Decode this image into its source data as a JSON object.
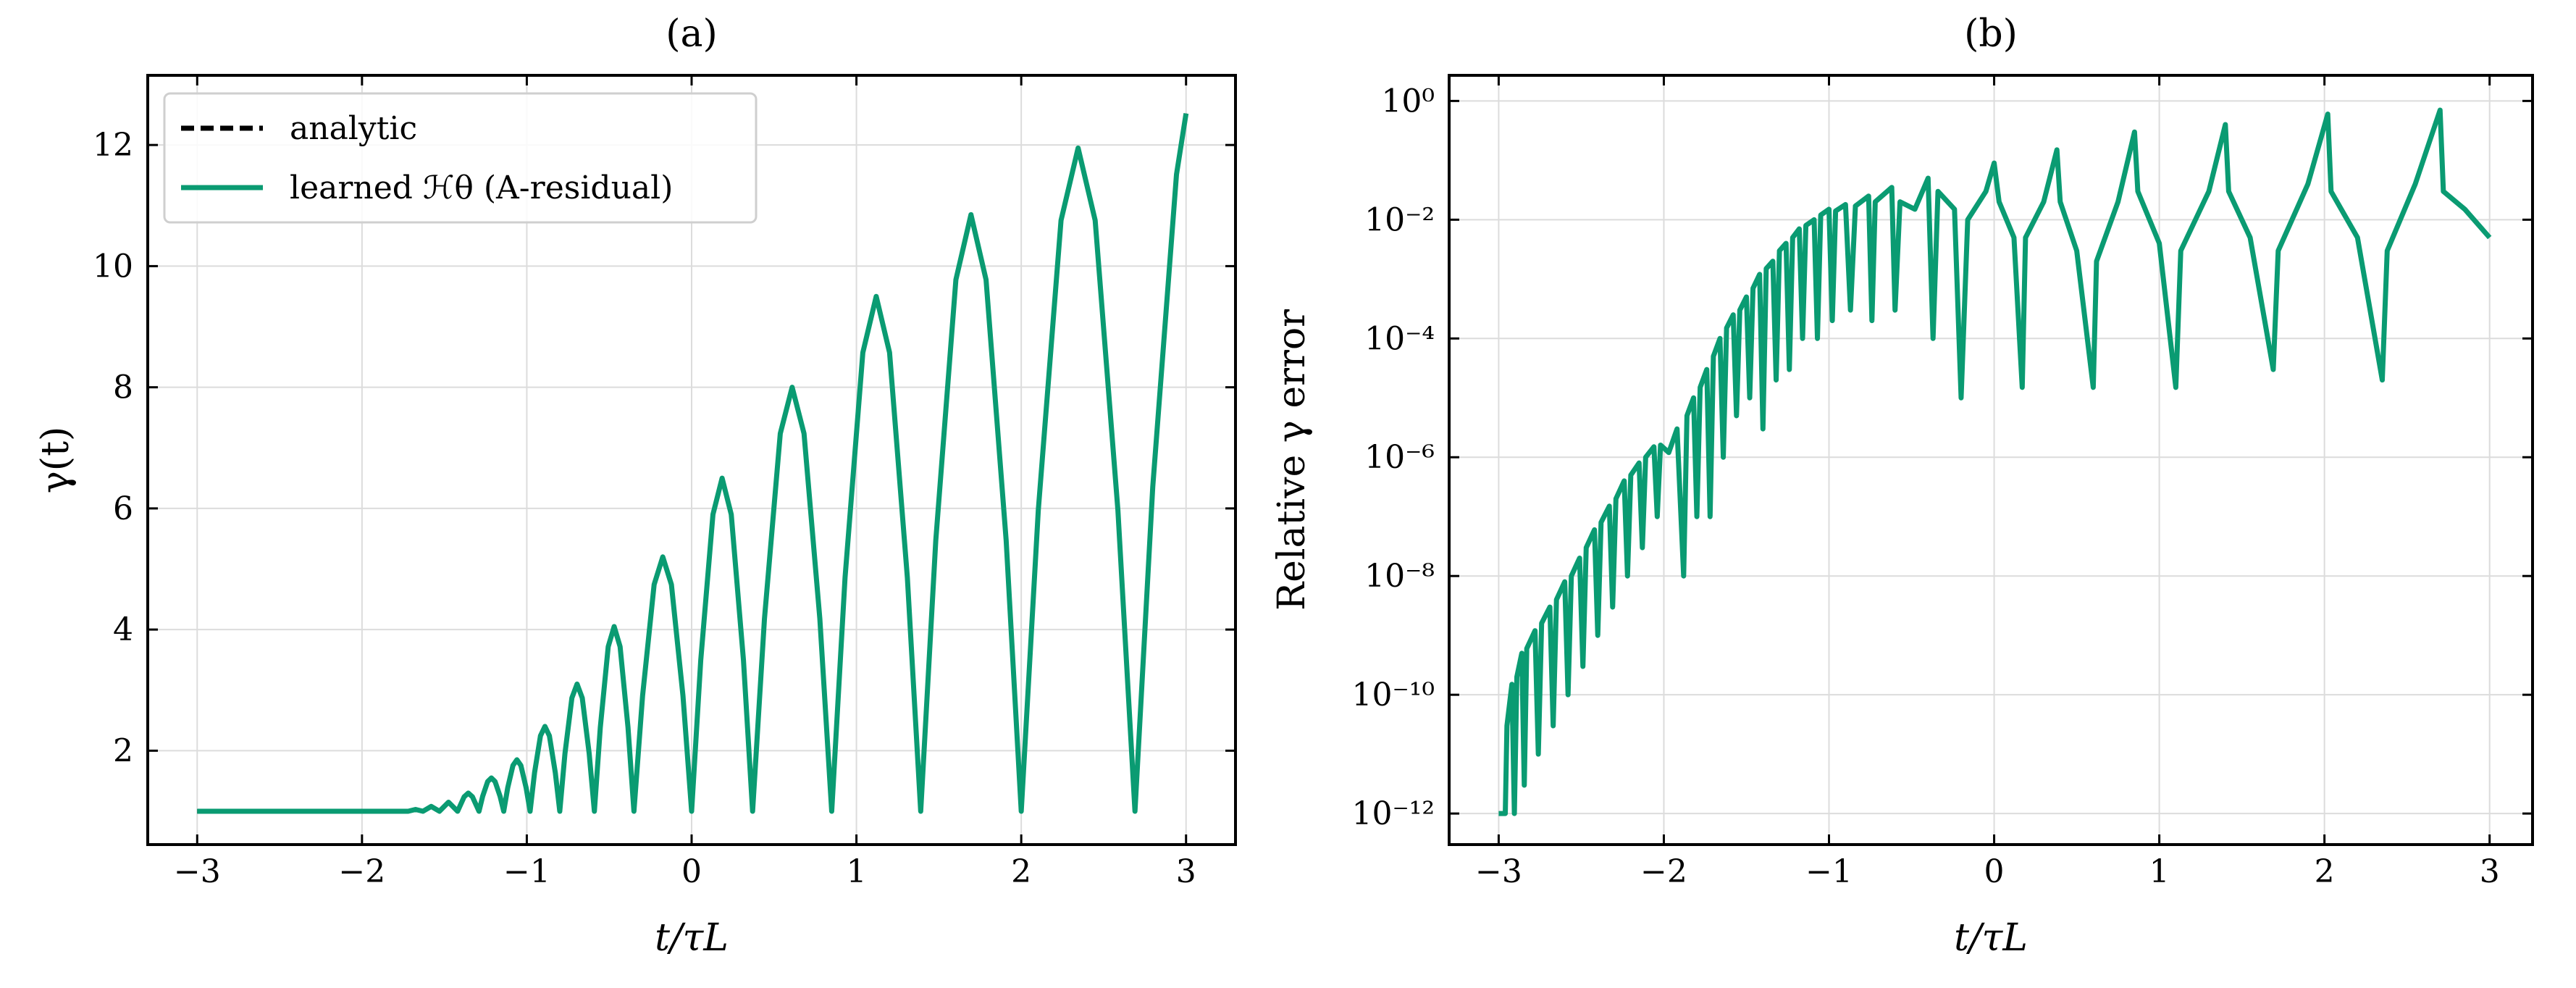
{
  "chart_data": [
    {
      "type": "line",
      "title": "(a)",
      "xlabel": "t/τL",
      "ylabel": "γ(t)",
      "xlim": [
        -3.3,
        3.3
      ],
      "ylim": [
        0.45,
        13.15
      ],
      "xticks": [
        {
          "value": -3,
          "label": "−3"
        },
        {
          "value": -2,
          "label": "−2"
        },
        {
          "value": -1,
          "label": "−1"
        },
        0,
        1,
        2,
        3
      ],
      "yticks": [
        2,
        4,
        6,
        8,
        10,
        12
      ],
      "grid": true,
      "legend": "upper left",
      "x": [
        -3,
        -2.5,
        -2,
        -1.8,
        -1.72,
        -1.675,
        -1.63,
        -1.58,
        -1.53,
        -1.475,
        -1.42,
        -1.38,
        -1.355,
        -1.33,
        -1.29,
        -1.2675,
        -1.2375,
        -1.215,
        -1.1925,
        -1.1625,
        -1.14,
        -1.116,
        -1.084,
        -1.06,
        -1.036,
        -1.004,
        -0.98,
        -0.953,
        -0.917,
        -0.89,
        -0.863,
        -0.827,
        -0.8,
        -0.7685,
        -0.7265,
        -0.695,
        -0.6635,
        -0.6215,
        -0.59,
        -0.554,
        -0.506,
        -0.47,
        -0.434,
        -0.386,
        -0.35,
        -0.2975,
        -0.2275,
        -0.175,
        -0.1225,
        -0.0525,
        0,
        0.0555,
        0.1295,
        0.185,
        0.2405,
        0.3145,
        0.37,
        0.442,
        0.538,
        0.61,
        0.682,
        0.778,
        0.85,
        0.931,
        1.039,
        1.12,
        1.201,
        1.309,
        1.39,
        1.4815,
        1.6035,
        1.695,
        1.7865,
        1.9085,
        2,
        2.1035,
        2.2415,
        2.345,
        2.4485,
        2.5865,
        2.69,
        2.798,
        2.942,
        3
      ],
      "series": [
        {
          "name": "analytic",
          "color": "#000000",
          "linestyle": "dashed",
          "values": [
            1,
            1,
            1,
            1,
            1,
            1.03,
            1,
            1.08,
            1,
            1.15,
            1,
            1.24,
            1.3,
            1.24,
            1,
            1.25,
            1.49,
            1.55,
            1.49,
            1.25,
            1,
            1.386,
            1.757,
            1.85,
            1.757,
            1.386,
            1,
            1.636,
            2.247,
            2.4,
            2.247,
            1.636,
            1,
            1.953,
            2.871,
            3.1,
            2.871,
            1.953,
            1,
            2.385,
            3.718,
            4.05,
            3.718,
            2.385,
            1,
            2.907,
            4.742,
            5.2,
            4.742,
            2.907,
            1,
            3.497,
            5.901,
            6.5,
            5.901,
            3.497,
            1,
            4.178,
            7.237,
            8,
            7.237,
            4.178,
            1,
            4.859,
            8.574,
            9.5,
            8.574,
            4.859,
            1,
            5.472,
            9.776,
            10.85,
            9.776,
            5.472,
            1,
            5.971,
            10.756,
            11.95,
            10.756,
            5.971,
            1,
            6.357,
            11.514,
            12.52
          ]
        },
        {
          "name": "learned ℋθ (A-residual)",
          "color": "#0a9b72",
          "linestyle": "solid",
          "values": [
            1,
            1,
            1,
            1,
            1,
            1.03,
            1,
            1.08,
            1,
            1.15,
            1,
            1.24,
            1.3,
            1.24,
            1,
            1.25,
            1.49,
            1.55,
            1.49,
            1.25,
            1,
            1.386,
            1.757,
            1.85,
            1.757,
            1.386,
            1,
            1.636,
            2.247,
            2.4,
            2.247,
            1.636,
            1,
            1.953,
            2.871,
            3.1,
            2.871,
            1.953,
            1,
            2.385,
            3.718,
            4.05,
            3.718,
            2.385,
            1,
            2.907,
            4.742,
            5.2,
            4.742,
            2.907,
            1,
            3.497,
            5.901,
            6.5,
            5.901,
            3.497,
            1,
            4.178,
            7.237,
            8,
            7.237,
            4.178,
            1,
            4.859,
            8.574,
            9.5,
            8.574,
            4.859,
            1,
            5.472,
            9.776,
            10.85,
            9.776,
            5.472,
            1,
            5.971,
            10.756,
            11.95,
            10.756,
            5.971,
            1,
            6.357,
            11.514,
            12.52
          ]
        }
      ]
    },
    {
      "type": "line",
      "title": "(b)",
      "xlabel": "t/τL",
      "ylabel": "Relative γ error",
      "yscale": "log",
      "xlim": [
        -3.3,
        3.26
      ],
      "ylim": [
        3e-13,
        2.7
      ],
      "xticks": [
        {
          "value": -3,
          "label": "−3"
        },
        {
          "value": -2,
          "label": "−2"
        },
        {
          "value": -1,
          "label": "−1"
        },
        0,
        1,
        2,
        3
      ],
      "yticks": [
        {
          "value": 1e-12,
          "label": "10⁻¹²"
        },
        {
          "value": 1e-10,
          "label": "10⁻¹⁰"
        },
        {
          "value": 1e-08,
          "label": "10⁻⁸"
        },
        {
          "value": 1e-06,
          "label": "10⁻⁶"
        },
        {
          "value": 0.0001,
          "label": "10⁻⁴"
        },
        {
          "value": 0.01,
          "label": "10⁻²"
        },
        {
          "value": 1,
          "label": "10⁰"
        }
      ],
      "grid": true,
      "x": [
        -3,
        -2.96,
        -2.95,
        -2.92,
        -2.905,
        -2.89,
        -2.86,
        -2.845,
        -2.83,
        -2.78,
        -2.76,
        -2.74,
        -2.69,
        -2.67,
        -2.65,
        -2.6,
        -2.58,
        -2.56,
        -2.51,
        -2.49,
        -2.47,
        -2.42,
        -2.4,
        -2.38,
        -2.33,
        -2.31,
        -2.29,
        -2.24,
        -2.22,
        -2.2,
        -2.15,
        -2.13,
        -2.11,
        -2.06,
        -2.04,
        -2.02,
        -1.97,
        -1.92,
        -1.88,
        -1.86,
        -1.82,
        -1.8,
        -1.78,
        -1.74,
        -1.72,
        -1.7,
        -1.66,
        -1.64,
        -1.62,
        -1.58,
        -1.56,
        -1.54,
        -1.5,
        -1.48,
        -1.46,
        -1.42,
        -1.4,
        -1.38,
        -1.34,
        -1.32,
        -1.3,
        -1.26,
        -1.24,
        -1.22,
        -1.18,
        -1.16,
        -1.14,
        -1.09,
        -1.07,
        -1.05,
        -1,
        -0.98,
        -0.96,
        -0.9,
        -0.87,
        -0.84,
        -0.76,
        -0.74,
        -0.72,
        -0.62,
        -0.6,
        -0.57,
        -0.48,
        -0.4,
        -0.37,
        -0.34,
        -0.24,
        -0.2,
        -0.16,
        -0.05,
        0,
        0.03,
        0.12,
        0.17,
        0.19,
        0.3,
        0.38,
        0.4,
        0.5,
        0.6,
        0.62,
        0.75,
        0.85,
        0.87,
        1,
        1.1,
        1.13,
        1.3,
        1.4,
        1.42,
        1.55,
        1.69,
        1.72,
        1.9,
        2.02,
        2.04,
        2.2,
        2.35,
        2.38,
        2.55,
        2.7,
        2.72,
        2.85,
        3
      ],
      "series": [
        {
          "color": "#0a9b72",
          "linestyle": "solid",
          "values": [
            1e-12,
            1e-12,
            3e-11,
            1.5e-10,
            1e-12,
            2e-10,
            5e-10,
            3e-12,
            6e-10,
            1.2e-09,
            1e-11,
            1.6e-09,
            3e-09,
            3e-11,
            4e-09,
            8e-09,
            1e-10,
            1e-08,
            2e-08,
            3e-10,
            3e-08,
            6e-08,
            1e-09,
            8e-08,
            1.5e-07,
            3e-09,
            2e-07,
            4e-07,
            1e-08,
            5e-07,
            8e-07,
            3e-08,
            1e-06,
            1.5e-06,
            1e-07,
            1.6e-06,
            1.2e-06,
            3e-06,
            1e-08,
            5e-06,
            1e-05,
            1e-07,
            1.5e-05,
            3e-05,
            1e-07,
            5e-05,
            0.0001,
            1e-06,
            0.00015,
            0.00025,
            5e-06,
            0.0003,
            0.0005,
            1e-05,
            0.0007,
            0.0012,
            3e-06,
            0.0015,
            0.002,
            2e-05,
            0.003,
            0.004,
            3e-05,
            0.005,
            0.007,
            0.0001,
            0.008,
            0.01,
            0.0001,
            0.012,
            0.015,
            0.0002,
            0.014,
            0.018,
            0.0003,
            0.017,
            0.025,
            0.0002,
            0.02,
            0.035,
            0.0003,
            0.02,
            0.015,
            0.05,
            0.0001,
            0.03,
            0.015,
            1e-05,
            0.01,
            0.03,
            0.09,
            0.02,
            0.005,
            1.5e-05,
            0.005,
            0.02,
            0.15,
            0.02,
            0.003,
            1.5e-05,
            0.002,
            0.02,
            0.3,
            0.03,
            0.004,
            1.5e-05,
            0.003,
            0.03,
            0.4,
            0.03,
            0.005,
            3e-05,
            0.003,
            0.04,
            0.6,
            0.03,
            0.005,
            2e-05,
            0.003,
            0.04,
            0.7,
            0.03,
            0.015,
            0.005
          ]
        }
      ]
    }
  ]
}
